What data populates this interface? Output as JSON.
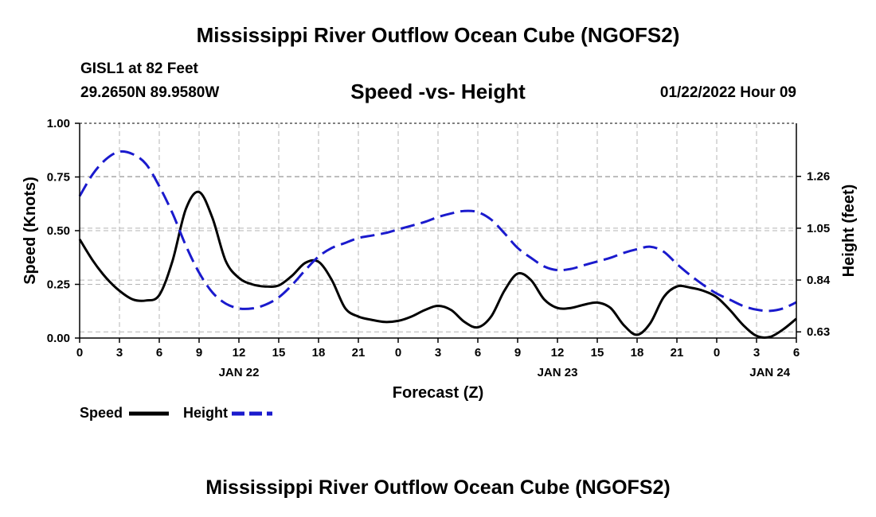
{
  "header": {
    "title": "Mississippi River Outflow Ocean Cube (NGOFS2)",
    "station": "GISL1 at 82 Feet",
    "coords": "29.2650N  89.9580W",
    "chart_title": "Speed -vs- Height",
    "datetime": "01/22/2022 Hour 09"
  },
  "footer": {
    "title": "Mississippi River Outflow Ocean Cube (NGOFS2)"
  },
  "colors": {
    "speed": "#000000",
    "height": "#1a1acd",
    "grid": "#b4b4b4"
  },
  "chart_data": {
    "type": "line",
    "title": "Speed -vs- Height",
    "xlabel": "Forecast (Z)",
    "ylabel": "Speed (Knots)",
    "y2label": "Height (feet)",
    "x_range": [
      0,
      54
    ],
    "x_ticks": [
      0,
      3,
      6,
      9,
      12,
      15,
      18,
      21,
      24,
      27,
      30,
      33,
      36,
      39,
      42,
      45,
      48,
      51,
      54
    ],
    "x_tick_labels": [
      "0",
      "3",
      "6",
      "9",
      "12",
      "15",
      "18",
      "21",
      "0",
      "3",
      "6",
      "9",
      "12",
      "15",
      "18",
      "21",
      "0",
      "3",
      "6"
    ],
    "day_labels": [
      {
        "x": 12,
        "label": "JAN 22"
      },
      {
        "x": 36,
        "label": "JAN 23"
      },
      {
        "x": 52,
        "label": "JAN 24"
      }
    ],
    "ylim": [
      0,
      1
    ],
    "y_ticks": [
      0,
      0.25,
      0.5,
      0.75,
      1.0
    ],
    "y_tick_labels": [
      "0.00",
      "0.25",
      "0.50",
      "0.75",
      "1.00"
    ],
    "y2lim": [
      0.605,
      1.475
    ],
    "y2_ticks": [
      0.63,
      0.84,
      1.05,
      1.26
    ],
    "y2_tick_labels": [
      "0.63",
      "0.84",
      "1.05",
      "1.26"
    ],
    "grid": true,
    "series": [
      {
        "name": "Speed",
        "axis": "left",
        "style": "solid",
        "x": [
          0,
          1,
          2,
          3,
          4,
          5,
          6,
          7,
          8,
          9,
          10,
          11,
          12,
          13,
          14,
          15,
          16,
          17,
          18,
          19,
          20,
          21,
          22,
          23,
          24,
          25,
          26,
          27,
          28,
          29,
          30,
          31,
          32,
          33,
          34,
          35,
          36,
          37,
          38,
          39,
          40,
          41,
          42,
          43,
          44,
          45,
          46,
          47,
          48,
          49,
          50,
          51,
          52,
          53,
          54
        ],
        "values": [
          0.46,
          0.36,
          0.28,
          0.22,
          0.18,
          0.175,
          0.2,
          0.36,
          0.6,
          0.68,
          0.56,
          0.36,
          0.28,
          0.25,
          0.24,
          0.245,
          0.29,
          0.35,
          0.355,
          0.27,
          0.14,
          0.1,
          0.085,
          0.075,
          0.08,
          0.1,
          0.13,
          0.15,
          0.13,
          0.075,
          0.05,
          0.1,
          0.22,
          0.3,
          0.27,
          0.18,
          0.14,
          0.14,
          0.155,
          0.165,
          0.14,
          0.06,
          0.015,
          0.07,
          0.19,
          0.24,
          0.235,
          0.22,
          0.19,
          0.13,
          0.06,
          0.01,
          0.005,
          0.04,
          0.09
        ]
      },
      {
        "name": "Height",
        "axis": "right",
        "style": "dashed",
        "x": [
          0,
          1,
          2,
          3,
          4,
          5,
          6,
          7,
          8,
          9,
          10,
          11,
          12,
          13,
          14,
          15,
          16,
          17,
          18,
          19,
          20,
          21,
          22,
          23,
          24,
          25,
          26,
          27,
          28,
          29,
          30,
          31,
          32,
          33,
          34,
          35,
          36,
          37,
          38,
          39,
          40,
          41,
          42,
          43,
          44,
          45,
          46,
          47,
          48,
          49,
          50,
          51,
          52,
          53,
          54
        ],
        "values": [
          1.18,
          1.27,
          1.33,
          1.36,
          1.35,
          1.31,
          1.22,
          1.11,
          0.98,
          0.87,
          0.79,
          0.745,
          0.725,
          0.725,
          0.74,
          0.77,
          0.82,
          0.88,
          0.935,
          0.97,
          0.99,
          1.01,
          1.02,
          1.03,
          1.045,
          1.06,
          1.075,
          1.095,
          1.11,
          1.12,
          1.115,
          1.085,
          1.03,
          0.97,
          0.93,
          0.895,
          0.88,
          0.885,
          0.9,
          0.915,
          0.93,
          0.95,
          0.965,
          0.975,
          0.955,
          0.905,
          0.86,
          0.82,
          0.785,
          0.76,
          0.735,
          0.72,
          0.715,
          0.725,
          0.75
        ]
      }
    ],
    "legend": [
      {
        "label": "Speed",
        "style": "solid",
        "color": "#000000"
      },
      {
        "label": "Height",
        "style": "dashed",
        "color": "#1a1acd"
      }
    ],
    "legend_position": "bottom-left"
  }
}
